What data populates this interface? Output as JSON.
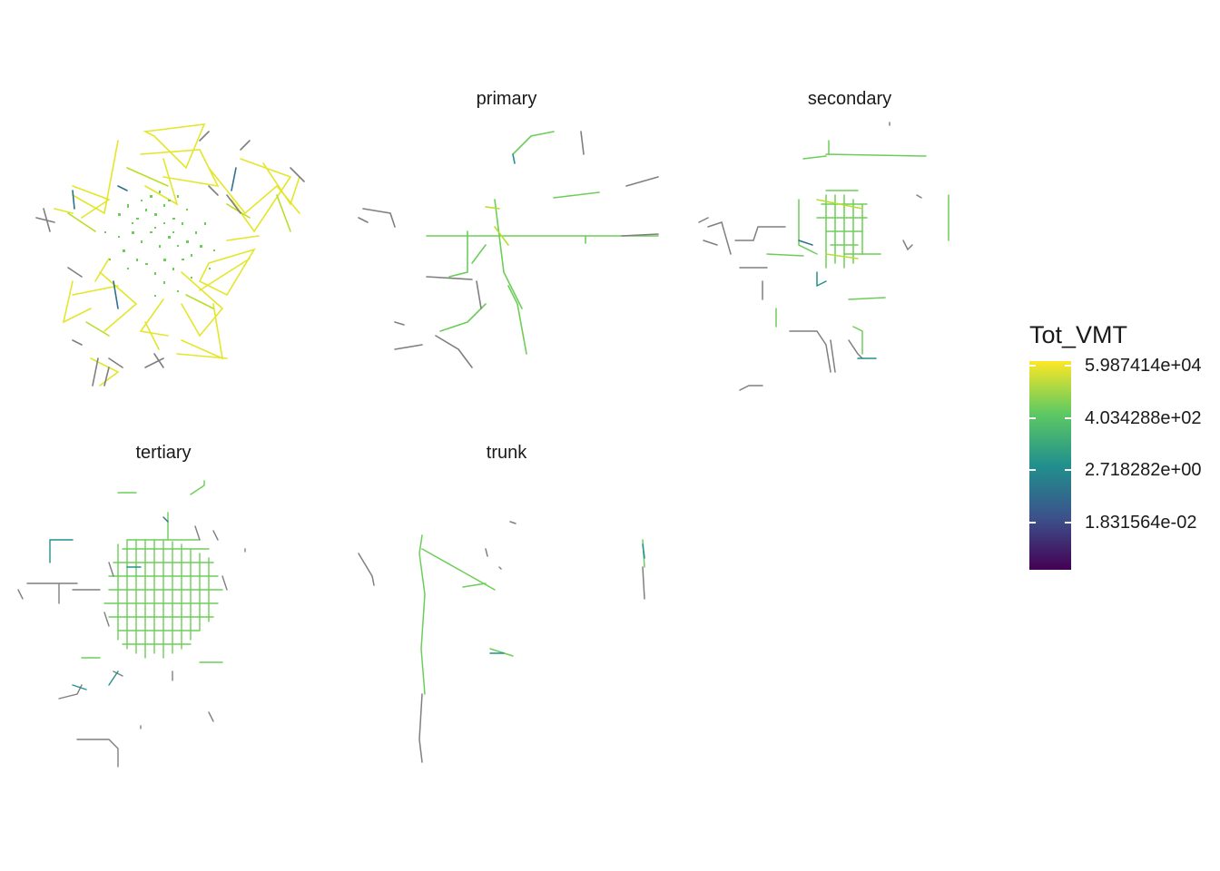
{
  "facets": [
    {
      "label": "",
      "name": "facet-all"
    },
    {
      "label": "primary",
      "name": "facet-primary"
    },
    {
      "label": "secondary",
      "name": "facet-secondary"
    },
    {
      "label": "tertiary",
      "name": "facet-tertiary"
    },
    {
      "label": "trunk",
      "name": "facet-trunk"
    }
  ],
  "legend": {
    "title": "Tot_VMT",
    "labels": [
      "5.987414e+04",
      "4.034288e+02",
      "2.718282e+00",
      "1.831564e-02"
    ],
    "gradient": [
      "#440154",
      "#3b528b",
      "#21908d",
      "#5ec962",
      "#fde725"
    ],
    "missing_color": "#808080"
  },
  "colors": {
    "yellow": "#e4e62a",
    "yellowgreen": "#b8de29",
    "green": "#6cce59",
    "teal": "#21908d",
    "blue": "#2c728e",
    "gray": "#7f7f7f"
  }
}
